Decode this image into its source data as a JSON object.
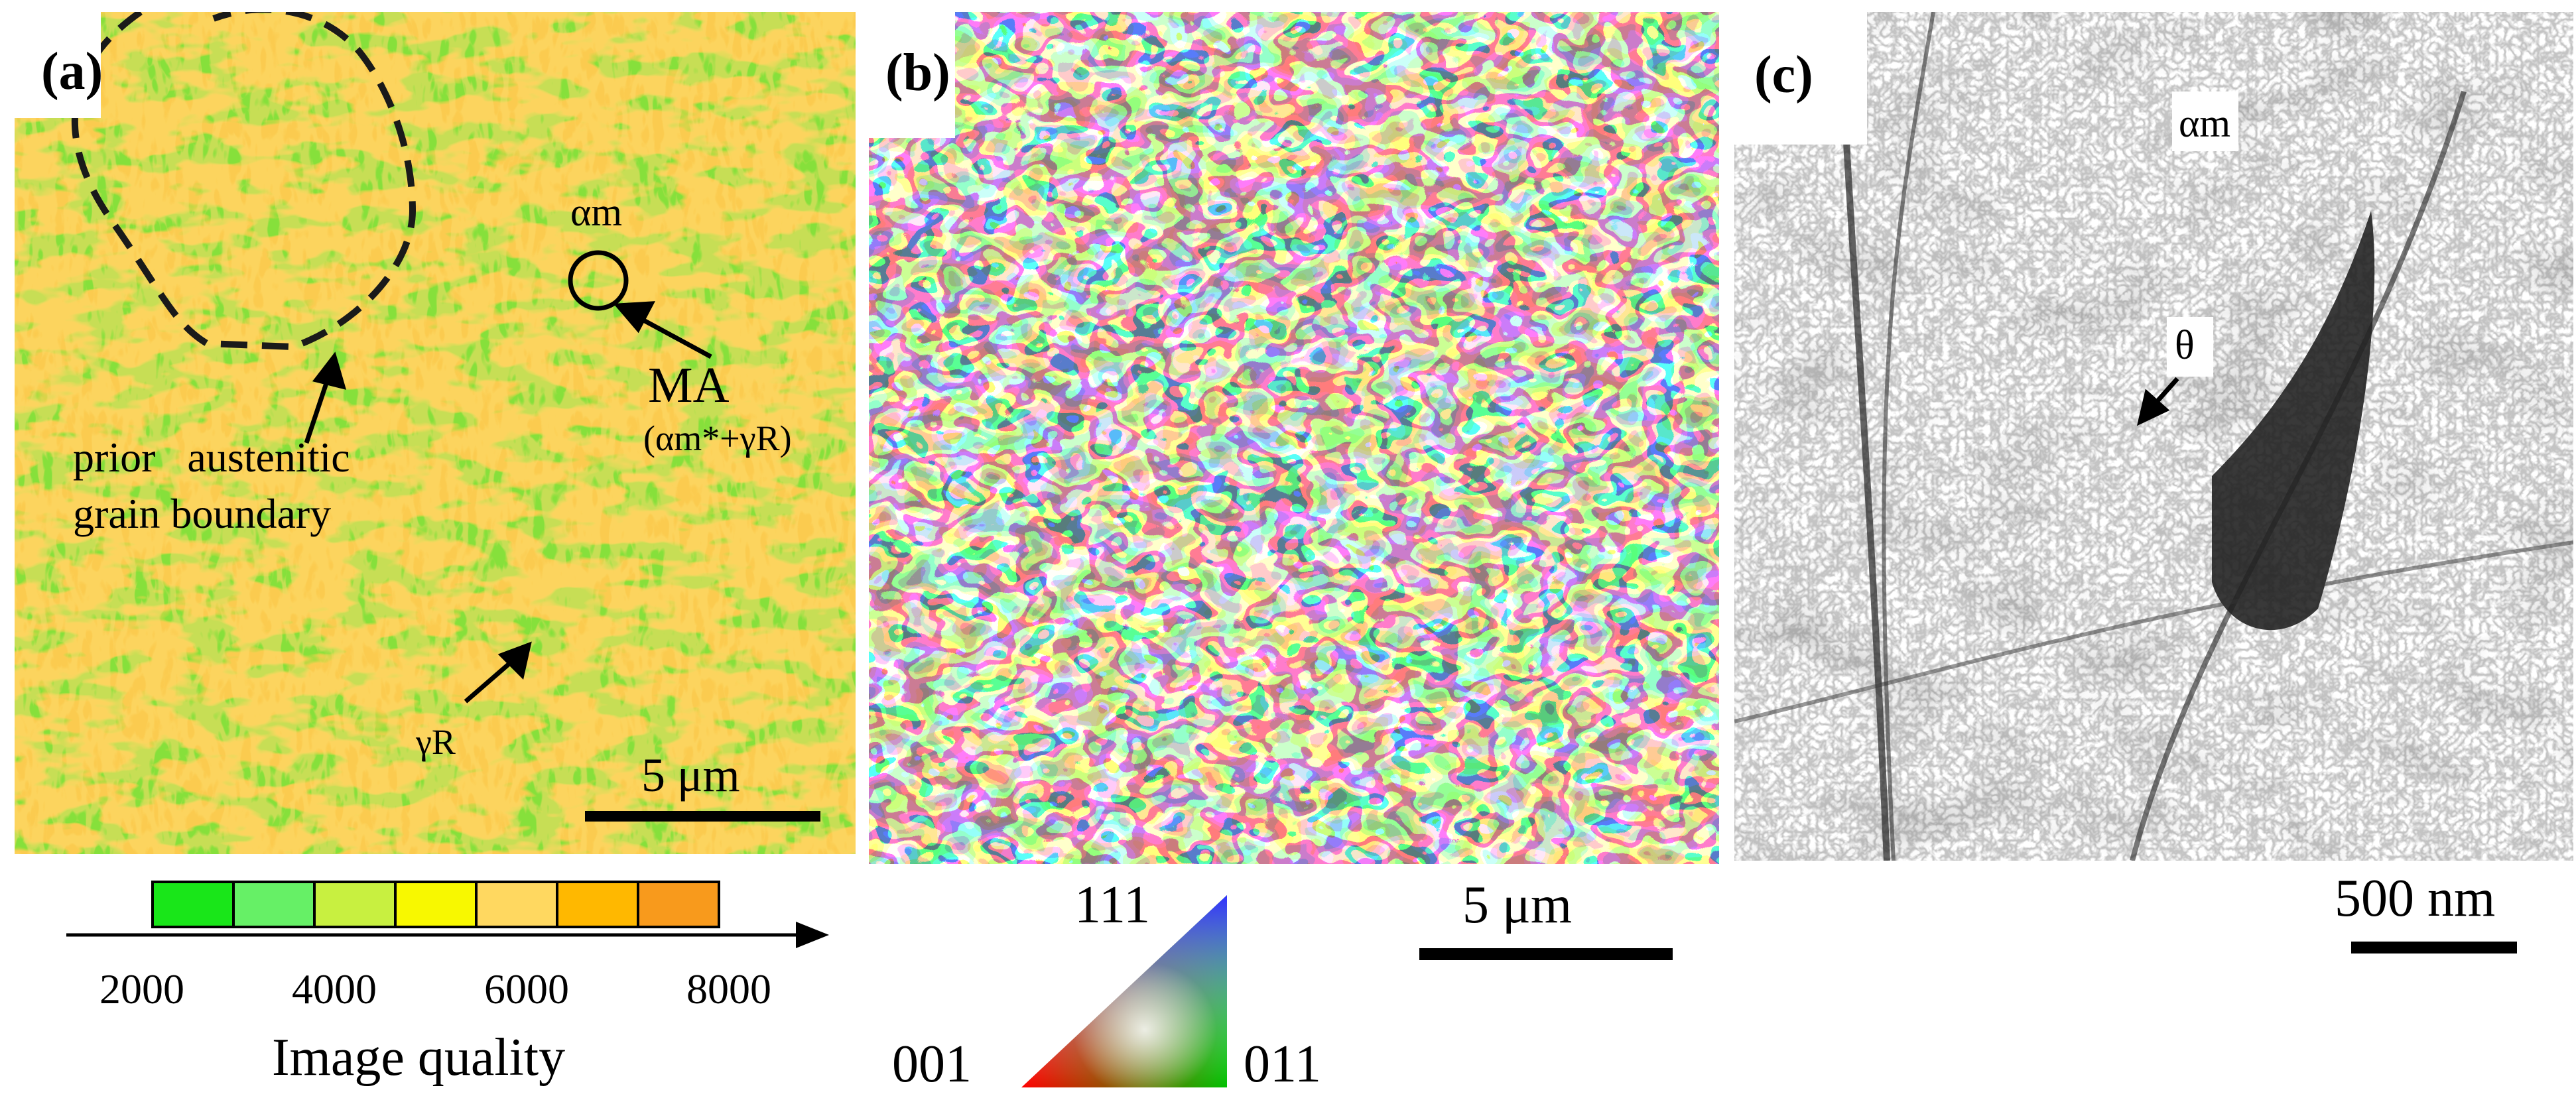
{
  "panels": {
    "a": {
      "label": "(a)",
      "alpha_m": "αm",
      "ma_label": "MA",
      "ma_sub": "(αm*+γR)",
      "boundary_label_1": "prior   austenitic",
      "boundary_label_2": "grain boundary",
      "gamma_r": "γR",
      "scale": "5 μm",
      "legend": {
        "ticks": [
          "2000",
          "4000",
          "6000",
          "8000"
        ],
        "title": "Image quality",
        "colors": [
          "#19e619",
          "#66f066",
          "#c8f040",
          "#f8f800",
          "#ffd860",
          "#ffb800",
          "#f89a1c"
        ]
      }
    },
    "b": {
      "label": "(b)",
      "scale": "5 μm",
      "triangle": {
        "top": "111",
        "left": "001",
        "right": "011"
      }
    },
    "c": {
      "label": "(c)",
      "alpha_m": "αm",
      "theta": "θ",
      "scale": "500 nm"
    }
  }
}
